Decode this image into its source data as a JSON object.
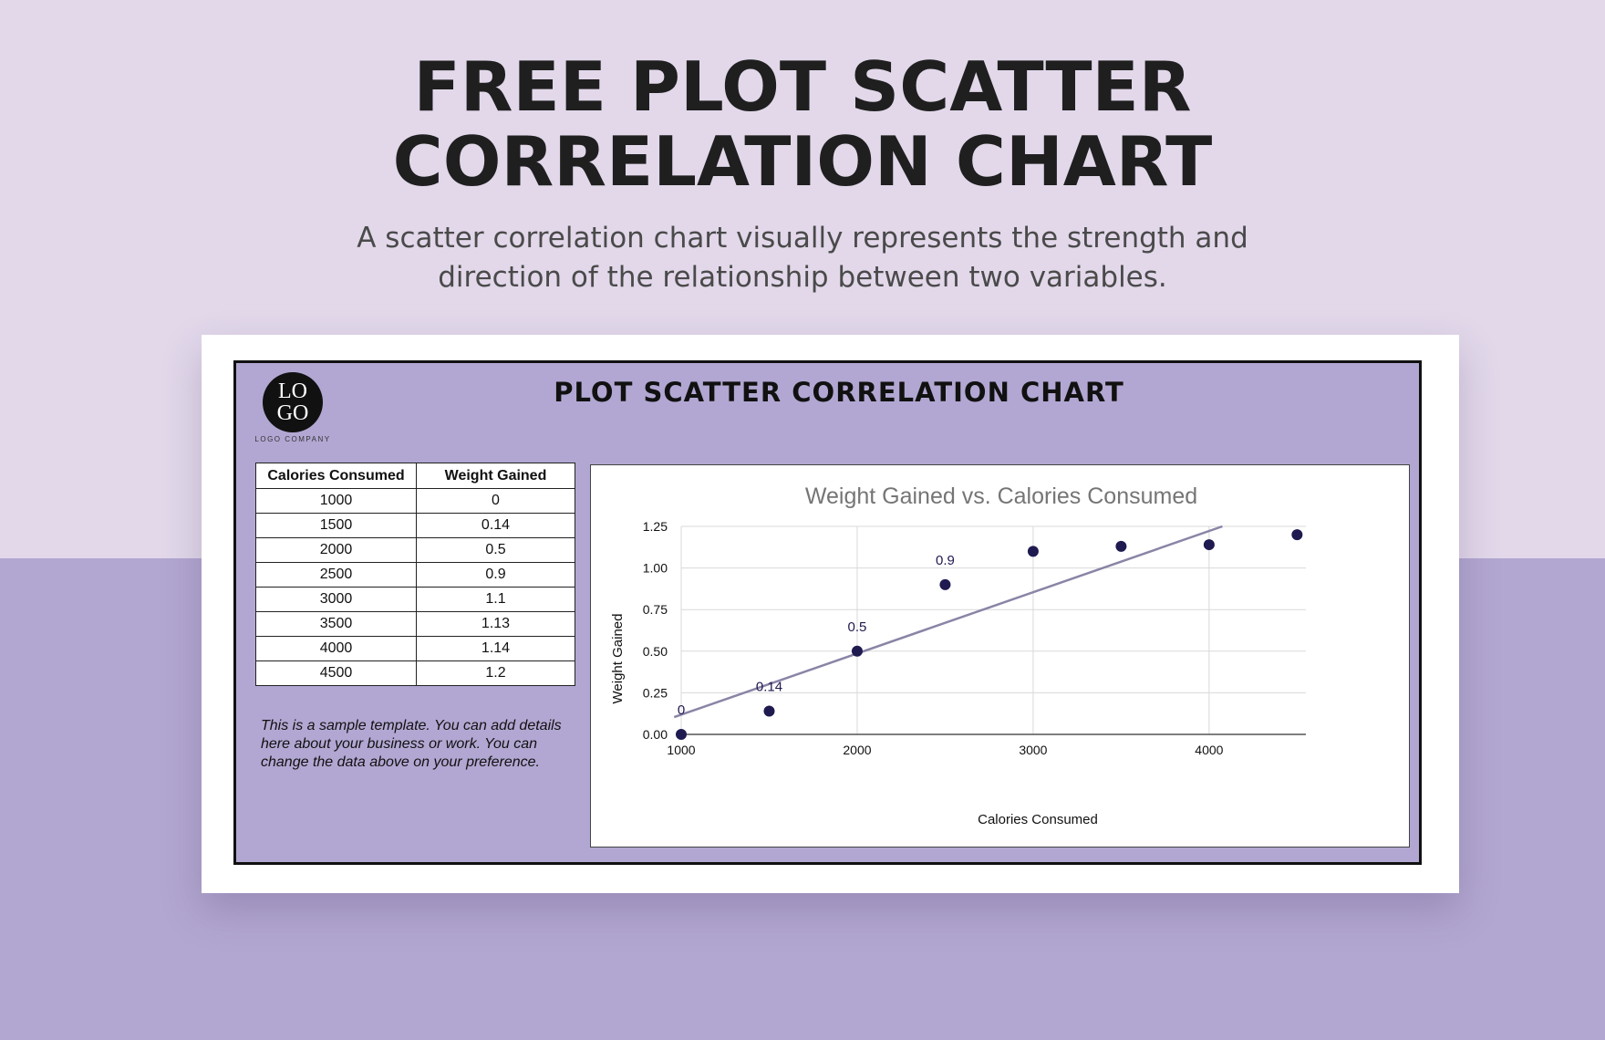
{
  "page": {
    "title_line1": "FREE PLOT SCATTER",
    "title_line2": "CORRELATION CHART",
    "subtitle": "A scatter correlation chart visually represents the strength and direction of the relationship between two variables."
  },
  "sheet": {
    "logo_line1": "LO",
    "logo_line2": "GO",
    "logo_company": "LOGO COMPANY",
    "title": "PLOT SCATTER CORRELATION CHART",
    "note": "This is a sample template. You can add details here about your business or work. You can change the data above on your preference."
  },
  "table": {
    "headers": [
      "Calories Consumed",
      "Weight Gained"
    ],
    "rows": [
      [
        "1000",
        "0"
      ],
      [
        "1500",
        "0.14"
      ],
      [
        "2000",
        "0.5"
      ],
      [
        "2500",
        "0.9"
      ],
      [
        "3000",
        "1.1"
      ],
      [
        "3500",
        "1.13"
      ],
      [
        "4000",
        "1.14"
      ],
      [
        "4500",
        "1.2"
      ]
    ]
  },
  "chart_data": {
    "type": "scatter",
    "title": "Weight Gained vs. Calories Consumed",
    "xlabel": "Calories Consumed",
    "ylabel": "Weight Gained",
    "x": [
      1000,
      1500,
      2000,
      2500,
      3000,
      3500,
      4000,
      4500
    ],
    "y": [
      0,
      0.14,
      0.5,
      0.9,
      1.1,
      1.13,
      1.14,
      1.2
    ],
    "data_labels": [
      "0",
      "0.14",
      "0.5",
      "0.9",
      "",
      "",
      "",
      ""
    ],
    "xlim": [
      1000,
      4550
    ],
    "ylim": [
      0,
      1.25
    ],
    "x_ticks": [
      1000,
      2000,
      3000,
      4000
    ],
    "x_tick_labels": [
      "1000",
      "2000",
      "3000",
      "4000"
    ],
    "y_ticks": [
      0,
      0.25,
      0.5,
      0.75,
      1.0,
      1.25
    ],
    "y_tick_labels": [
      "0.00",
      "0.25",
      "0.50",
      "0.75",
      "1.00",
      "1.25"
    ],
    "trendline": {
      "type": "linear",
      "slope": 0.000368,
      "intercept": -0.2497
    },
    "grid": true,
    "legend": "none",
    "colors": {
      "point": "#1f1a4f",
      "trendline": "#8a84a6",
      "grid": "#d9d9d9",
      "title": "#757575"
    }
  }
}
